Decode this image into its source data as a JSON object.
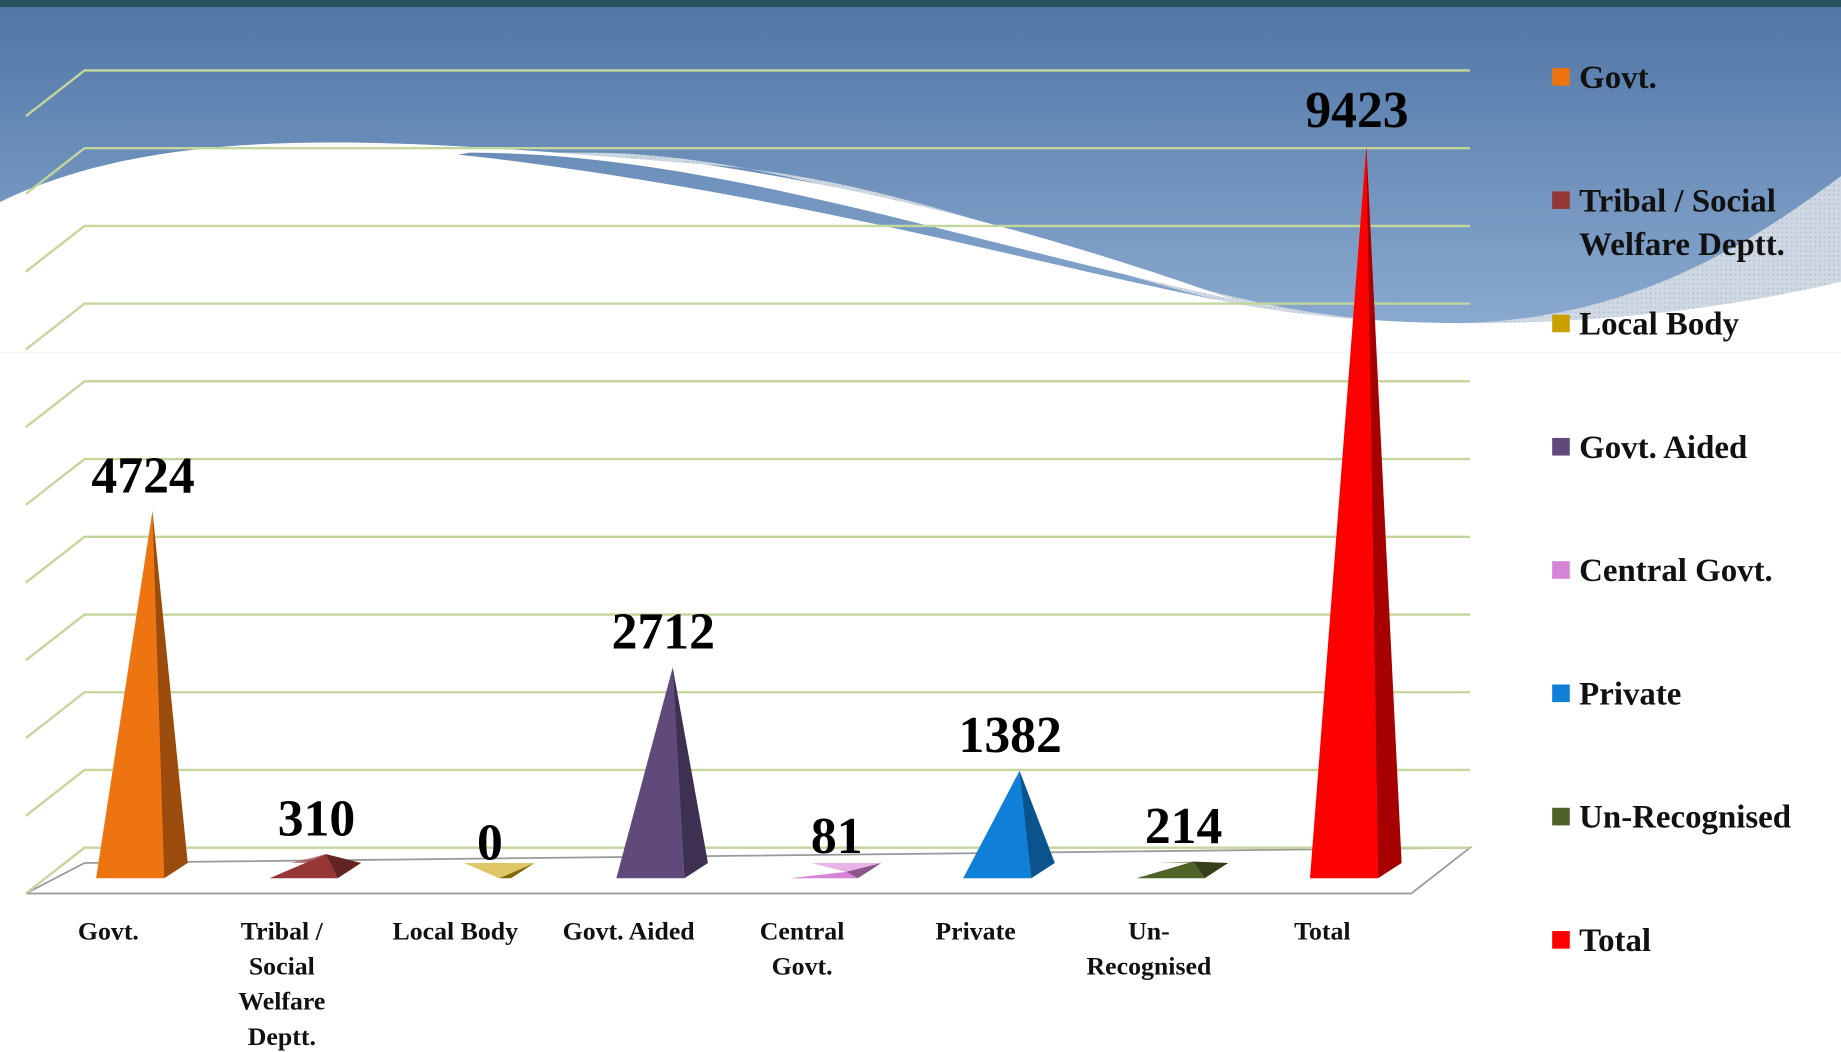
{
  "chart_data": {
    "type": "pyramid",
    "categories": [
      "Govt.",
      "Tribal / Social Welfare Deptt.",
      "Local Body",
      "Govt. Aided",
      "Central Govt.",
      "Private",
      "Un-Recognised",
      "Total"
    ],
    "values": [
      4724,
      310,
      0,
      2712,
      81,
      1382,
      214,
      9423
    ],
    "colors": [
      "#ee7411",
      "#953735",
      "#c9a000",
      "#604a7b",
      "#d684d6",
      "#0f7fd8",
      "#4f6228",
      "#ff0000"
    ],
    "ylim": [
      0,
      10000
    ],
    "yticks": [
      0,
      1000,
      2000,
      3000,
      4000,
      5000,
      6000,
      7000,
      8000,
      9000,
      10000
    ],
    "grid": true,
    "legend": "right"
  }
}
